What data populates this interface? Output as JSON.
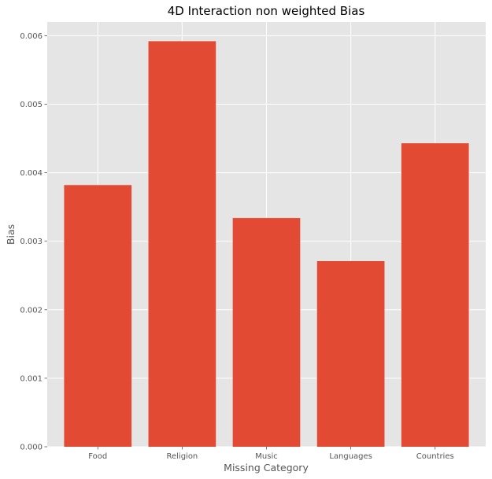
{
  "chart_data": {
    "type": "bar",
    "title": "4D Interaction non weighted Bias",
    "xlabel": "Missing Category",
    "ylabel": "Bias",
    "categories": [
      "Food",
      "Religion",
      "Music",
      "Languages",
      "Countries"
    ],
    "values": [
      0.00382,
      0.00592,
      0.00334,
      0.00271,
      0.00443
    ],
    "ylim": [
      0,
      0.0062
    ],
    "yticks": [
      0.0,
      0.001,
      0.002,
      0.003,
      0.004,
      0.005,
      0.006
    ],
    "ytick_labels": [
      "0.000",
      "0.001",
      "0.002",
      "0.003",
      "0.004",
      "0.005",
      "0.006"
    ],
    "grid": true,
    "legend": "none",
    "colors": {
      "bar": "#E24A33",
      "plot_background": "#E5E5E5",
      "grid": "#FFFFFF"
    }
  }
}
